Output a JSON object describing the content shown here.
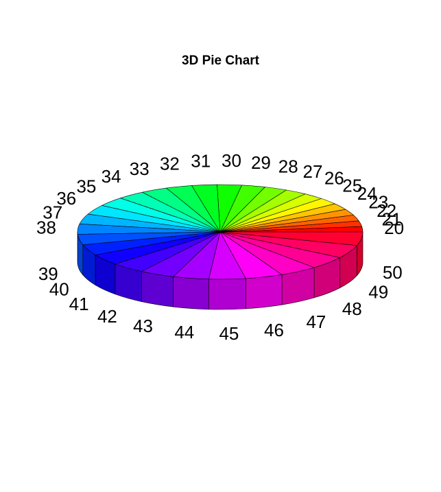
{
  "chart_data": {
    "type": "pie",
    "style": "3d",
    "title": "3D Pie Chart",
    "categories": [
      "20",
      "21",
      "22",
      "23",
      "24",
      "25",
      "26",
      "27",
      "28",
      "29",
      "30",
      "31",
      "32",
      "33",
      "34",
      "35",
      "36",
      "37",
      "38",
      "39",
      "40",
      "41",
      "42",
      "43",
      "44",
      "45",
      "46",
      "47",
      "48",
      "49",
      "50"
    ],
    "values": [
      20,
      21,
      22,
      23,
      24,
      25,
      26,
      27,
      28,
      29,
      30,
      31,
      32,
      33,
      34,
      35,
      36,
      37,
      38,
      39,
      40,
      41,
      42,
      43,
      44,
      45,
      46,
      47,
      48,
      49,
      50
    ],
    "colors": [
      "#FF0000",
      "#FF3100",
      "#FF6300",
      "#FF9400",
      "#FFC500",
      "#FFF600",
      "#D6FF00",
      "#A5FF00",
      "#73FF00",
      "#42FF00",
      "#10FF00",
      "#00FF21",
      "#00FF52",
      "#00FF84",
      "#00FFB5",
      "#00FFE6",
      "#00E6FF",
      "#00B5FF",
      "#0084FF",
      "#0052FF",
      "#0021FF",
      "#1000FF",
      "#4200FF",
      "#7300FF",
      "#A500FF",
      "#D600FF",
      "#FF00F6",
      "#FF00C5",
      "#FF0094",
      "#FF0063",
      "#FF0031"
    ]
  }
}
